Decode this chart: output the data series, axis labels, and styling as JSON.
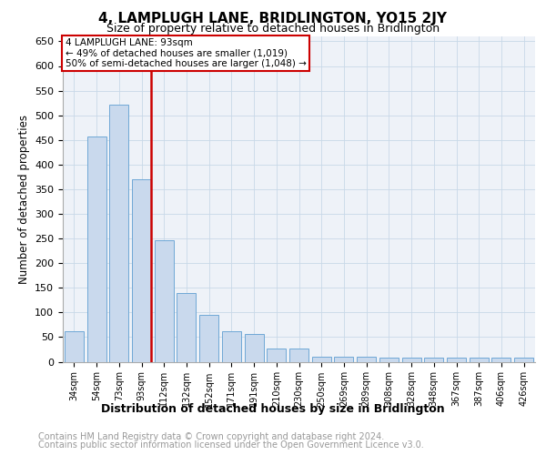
{
  "title": "4, LAMPLUGH LANE, BRIDLINGTON, YO15 2JY",
  "subtitle": "Size of property relative to detached houses in Bridlington",
  "xlabel": "Distribution of detached houses by size in Bridlington",
  "ylabel": "Number of detached properties",
  "bar_labels": [
    "34sqm",
    "54sqm",
    "73sqm",
    "93sqm",
    "112sqm",
    "132sqm",
    "152sqm",
    "171sqm",
    "191sqm",
    "210sqm",
    "230sqm",
    "250sqm",
    "269sqm",
    "289sqm",
    "308sqm",
    "328sqm",
    "348sqm",
    "367sqm",
    "387sqm",
    "406sqm",
    "426sqm"
  ],
  "bar_values": [
    62,
    457,
    522,
    370,
    247,
    140,
    95,
    62,
    57,
    27,
    27,
    10,
    10,
    10,
    8,
    8,
    8,
    8,
    8,
    8,
    8
  ],
  "bar_color": "#c9d9ed",
  "bar_edge_color": "#6fa8d6",
  "annotation_text_line1": "4 LAMPLUGH LANE: 93sqm",
  "annotation_text_line2": "← 49% of detached houses are smaller (1,019)",
  "annotation_text_line3": "50% of semi-detached houses are larger (1,048) →",
  "annotation_box_edge_color": "#cc0000",
  "vline_color": "#cc0000",
  "vline_x_index": 3,
  "ylim": [
    0,
    660
  ],
  "yticks": [
    0,
    50,
    100,
    150,
    200,
    250,
    300,
    350,
    400,
    450,
    500,
    550,
    600,
    650
  ],
  "footnote_line1": "Contains HM Land Registry data © Crown copyright and database right 2024.",
  "footnote_line2": "Contains public sector information licensed under the Open Government Licence v3.0.",
  "grid_color": "#c8d8e8",
  "bg_color": "#eef2f8",
  "title_fontsize": 11,
  "subtitle_fontsize": 9,
  "xlabel_fontsize": 9,
  "ylabel_fontsize": 8.5,
  "tick_fontsize": 8,
  "annot_fontsize": 7.5,
  "footnote_fontsize": 7
}
